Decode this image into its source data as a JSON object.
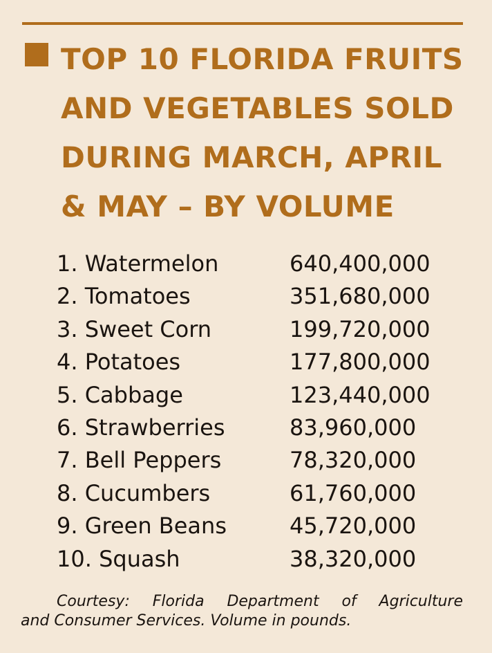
{
  "colors": {
    "background": "#f4e8d8",
    "accent": "#b06d1c",
    "text": "#1a1410"
  },
  "title": {
    "bullet_icon": "square-bullet-icon",
    "lines": [
      "TOP 10 FLORIDA FRUITS",
      "AND VEGETABLES SOLD",
      "DURING MARCH, APRIL",
      "& MAY – BY VOLUME"
    ]
  },
  "items": [
    {
      "name": "1. Watermelon",
      "value": "640,400,000"
    },
    {
      "name": "2. Tomatoes",
      "value": "351,680,000"
    },
    {
      "name": "3. Sweet Corn",
      "value": "199,720,000"
    },
    {
      "name": "4. Potatoes",
      "value": "177,800,000"
    },
    {
      "name": "5. Cabbage",
      "value": "123,440,000"
    },
    {
      "name": "6. Strawberries",
      "value": "83,960,000"
    },
    {
      "name": "7. Bell Peppers",
      "value": "78,320,000"
    },
    {
      "name": "8. Cucumbers",
      "value": "61,760,000"
    },
    {
      "name": "9. Green Beans",
      "value": "45,720,000"
    },
    {
      "name": "10. Squash",
      "value": "38,320,000"
    }
  ],
  "courtesy": {
    "line1": "Courtesy: Florida Department of Agriculture",
    "line2": "and Consumer Services. Volume in pounds."
  }
}
